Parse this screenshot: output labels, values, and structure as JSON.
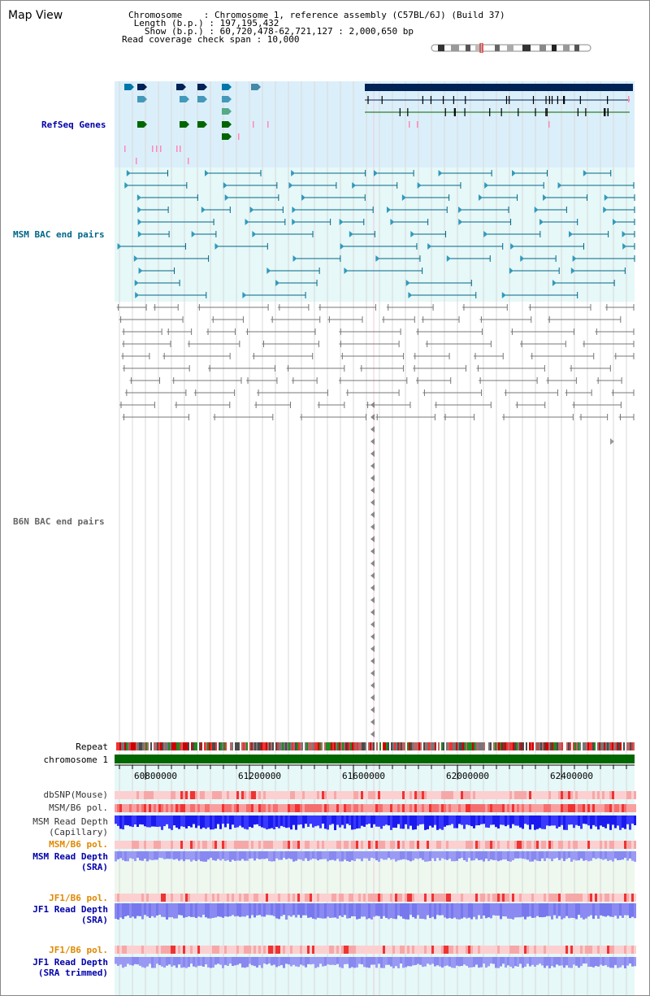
{
  "header": {
    "title": "Map View",
    "chromosome_line": "Chromosome    : Chromosome 1, reference assembly (C57BL/6J) (Build 37)",
    "length_line": " Length (b.p.) : 197,195,432",
    "show_line": "   Show (b.p.) : 60,720,478-62,721,127 : 2,000,650 bp",
    "coverage_line": "Read coverage check span : 10,000"
  },
  "tracks": {
    "refseq": {
      "label": "RefSeq Genes",
      "color": "#0000aa"
    },
    "msm_bac": {
      "label": "MSM BAC end pairs",
      "color": "#006688"
    },
    "b6n_bac": {
      "label": "B6N BAC end pairs",
      "color": "#666666"
    },
    "repeat": {
      "label": "Repeat"
    },
    "chromosome": {
      "label": "chromosome 1"
    },
    "dbsnp": {
      "label": "dbSNP(Mouse)"
    },
    "msm_b6_pol_1": {
      "label": "MSM/B6 pol."
    },
    "msm_depth_cap": {
      "label": "MSM Read Depth\n(Capillary)"
    },
    "msm_b6_pol_2": {
      "label": "MSM/B6 pol.",
      "color": "#e08800"
    },
    "msm_depth_sra": {
      "label": "MSM Read Depth\n(SRA)",
      "color": "#0000aa"
    },
    "jf1_b6_pol_1": {
      "label": "JF1/B6 pol.",
      "color": "#e08800"
    },
    "jf1_depth_sra": {
      "label": "JF1 Read Depth\n(SRA)",
      "color": "#0000aa"
    },
    "jf1_b6_pol_2": {
      "label": "JF1/B6 pol.",
      "color": "#e08800"
    },
    "jf1_depth_trim": {
      "label": "JF1 Read Depth\n(SRA trimmed)",
      "color": "#0000aa"
    }
  },
  "scale": {
    "ticks": [
      "60800000",
      "61200000",
      "61600000",
      "62000000",
      "62400000"
    ]
  },
  "colors": {
    "refseq_bg": "#dbeffa",
    "msm_bg": "#e6f8f8",
    "scale_bg": "#e6f8f8",
    "chromosome_bar": "#006600",
    "depth_blue": "#1a1aee",
    "depth_light": "#8888f0"
  }
}
